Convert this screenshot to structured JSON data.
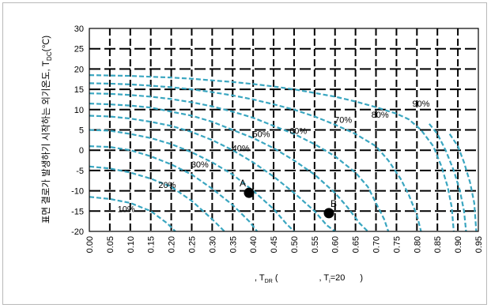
{
  "chart_data": {
    "type": "line",
    "xlabel_parts": [
      ", T",
      "DR",
      " (",
      ", T",
      "i",
      "=20",
      " )"
    ],
    "ylabel": "표면 결로가 발생하기 시작하는 외기온도, T",
    "ylabel_sub": "DC",
    "ylabel_unit": "(℃)",
    "xlim": [
      0,
      0.95
    ],
    "ylim": [
      -20,
      30
    ],
    "x_ticks": [
      "0.00",
      "0.05",
      "0.10",
      "0.15",
      "0.20",
      "0.25",
      "0.30",
      "0.35",
      "0.40",
      "0.45",
      "0.50",
      "0.55",
      "0.60",
      "0.65",
      "0.70",
      "0.75",
      "0.80",
      "0.85",
      "0.90",
      "0.95"
    ],
    "y_ticks": [
      "30",
      "25",
      "20",
      "15",
      "10",
      "5",
      "0",
      "-5",
      "-10",
      "-15",
      "-20"
    ],
    "grid": true,
    "line_color": "#3aa6c0",
    "series": [
      {
        "name": "10%",
        "points": [
          [
            0,
            -11.5
          ],
          [
            0.05,
            -12
          ],
          [
            0.1,
            -13
          ],
          [
            0.15,
            -15
          ],
          [
            0.19,
            -18
          ],
          [
            0.21,
            -20
          ]
        ]
      },
      {
        "name": "20%",
        "points": [
          [
            0,
            -4
          ],
          [
            0.05,
            -4.5
          ],
          [
            0.1,
            -5.5
          ],
          [
            0.15,
            -7
          ],
          [
            0.2,
            -9
          ],
          [
            0.25,
            -12.5
          ],
          [
            0.3,
            -17
          ],
          [
            0.33,
            -20
          ]
        ]
      },
      {
        "name": "30%",
        "points": [
          [
            0,
            1
          ],
          [
            0.05,
            0.8
          ],
          [
            0.1,
            0
          ],
          [
            0.15,
            -1.5
          ],
          [
            0.2,
            -3.5
          ],
          [
            0.25,
            -6
          ],
          [
            0.3,
            -9.5
          ],
          [
            0.35,
            -13.5
          ],
          [
            0.39,
            -17.5
          ],
          [
            0.41,
            -20
          ]
        ]
      },
      {
        "name": "40%",
        "points": [
          [
            0,
            5
          ],
          [
            0.05,
            4.8
          ],
          [
            0.1,
            4
          ],
          [
            0.15,
            3
          ],
          [
            0.2,
            1.5
          ],
          [
            0.25,
            -0.5
          ],
          [
            0.3,
            -3
          ],
          [
            0.35,
            -6
          ],
          [
            0.4,
            -10
          ],
          [
            0.45,
            -14.5
          ],
          [
            0.48,
            -18
          ],
          [
            0.5,
            -20
          ]
        ]
      },
      {
        "name": "50%",
        "points": [
          [
            0,
            8.5
          ],
          [
            0.05,
            8.3
          ],
          [
            0.1,
            7.8
          ],
          [
            0.15,
            7
          ],
          [
            0.2,
            6
          ],
          [
            0.25,
            4.5
          ],
          [
            0.3,
            2.5
          ],
          [
            0.35,
            0
          ],
          [
            0.4,
            -3
          ],
          [
            0.45,
            -6.5
          ],
          [
            0.5,
            -10.5
          ],
          [
            0.55,
            -15
          ],
          [
            0.58,
            -18.5
          ],
          [
            0.6,
            -20
          ]
        ]
      },
      {
        "name": "60%",
        "points": [
          [
            0,
            11.5
          ],
          [
            0.05,
            11.3
          ],
          [
            0.1,
            11
          ],
          [
            0.15,
            10.5
          ],
          [
            0.2,
            9.5
          ],
          [
            0.25,
            8.5
          ],
          [
            0.3,
            7
          ],
          [
            0.35,
            5
          ],
          [
            0.4,
            3
          ],
          [
            0.45,
            0.5
          ],
          [
            0.5,
            -2.5
          ],
          [
            0.55,
            -6
          ],
          [
            0.6,
            -10.5
          ],
          [
            0.63,
            -14
          ],
          [
            0.66,
            -18
          ],
          [
            0.68,
            -20
          ]
        ]
      },
      {
        "name": "70%",
        "points": [
          [
            0,
            14
          ],
          [
            0.05,
            13.9
          ],
          [
            0.1,
            13.6
          ],
          [
            0.15,
            13.2
          ],
          [
            0.2,
            12.6
          ],
          [
            0.25,
            11.8
          ],
          [
            0.3,
            10.8
          ],
          [
            0.35,
            9.5
          ],
          [
            0.4,
            8
          ],
          [
            0.45,
            6
          ],
          [
            0.5,
            4
          ],
          [
            0.55,
            1.5
          ],
          [
            0.6,
            -1.5
          ],
          [
            0.65,
            -5.5
          ],
          [
            0.68,
            -9
          ],
          [
            0.7,
            -13
          ],
          [
            0.72,
            -17
          ],
          [
            0.73,
            -20
          ]
        ]
      },
      {
        "name": "80%",
        "points": [
          [
            0,
            16.5
          ],
          [
            0.05,
            16.4
          ],
          [
            0.1,
            16.2
          ],
          [
            0.15,
            15.9
          ],
          [
            0.2,
            15.5
          ],
          [
            0.25,
            15
          ],
          [
            0.3,
            14.3
          ],
          [
            0.35,
            13.5
          ],
          [
            0.4,
            12.5
          ],
          [
            0.45,
            11.3
          ],
          [
            0.5,
            10
          ],
          [
            0.55,
            8.3
          ],
          [
            0.6,
            6.3
          ],
          [
            0.65,
            4
          ],
          [
            0.7,
            1
          ],
          [
            0.73,
            -2.5
          ],
          [
            0.76,
            -7
          ],
          [
            0.78,
            -11
          ],
          [
            0.8,
            -16
          ],
          [
            0.81,
            -20
          ]
        ]
      },
      {
        "name": "90%",
        "points": [
          [
            0,
            18.5
          ],
          [
            0.05,
            18.4
          ],
          [
            0.1,
            18.3
          ],
          [
            0.15,
            18.1
          ],
          [
            0.2,
            17.9
          ],
          [
            0.25,
            17.6
          ],
          [
            0.3,
            17.2
          ],
          [
            0.35,
            16.8
          ],
          [
            0.4,
            16.3
          ],
          [
            0.45,
            15.7
          ],
          [
            0.5,
            15
          ],
          [
            0.55,
            14.1
          ],
          [
            0.6,
            13.2
          ],
          [
            0.65,
            12
          ],
          [
            0.7,
            10.6
          ],
          [
            0.75,
            9
          ],
          [
            0.78,
            7.6
          ],
          [
            0.81,
            5
          ],
          [
            0.84,
            1
          ],
          [
            0.86,
            -4
          ],
          [
            0.875,
            -9
          ],
          [
            0.885,
            -14
          ],
          [
            0.89,
            -20
          ]
        ]
      },
      {
        "name": "",
        "points": [
          [
            0.83,
            6.5
          ],
          [
            0.85,
            4
          ],
          [
            0.87,
            0
          ],
          [
            0.89,
            -5
          ],
          [
            0.905,
            -10
          ],
          [
            0.915,
            -15
          ],
          [
            0.92,
            -20
          ]
        ]
      },
      {
        "name": "",
        "points": [
          [
            0.88,
            4
          ],
          [
            0.9,
            1
          ],
          [
            0.915,
            -3
          ],
          [
            0.93,
            -8
          ],
          [
            0.94,
            -13
          ],
          [
            0.945,
            -20
          ]
        ]
      }
    ],
    "curve_labels": [
      {
        "text": "10%",
        "x": 0.09,
        "y": -14.5
      },
      {
        "text": "20%",
        "x": 0.19,
        "y": -8.5
      },
      {
        "text": "30%",
        "x": 0.27,
        "y": -3.5
      },
      {
        "text": "40%",
        "x": 0.37,
        "y": 0.5
      },
      {
        "text": "50%",
        "x": 0.42,
        "y": 4
      },
      {
        "text": "60%",
        "x": 0.51,
        "y": 4.8
      },
      {
        "text": "70%",
        "x": 0.62,
        "y": 7.5
      },
      {
        "text": "80%",
        "x": 0.71,
        "y": 8.8
      },
      {
        "text": "90%",
        "x": 0.81,
        "y": 11.5
      }
    ],
    "markers": [
      {
        "label": "A",
        "x": 0.39,
        "y": -10.5
      },
      {
        "label": "B",
        "x": 0.585,
        "y": -15.5
      }
    ]
  }
}
